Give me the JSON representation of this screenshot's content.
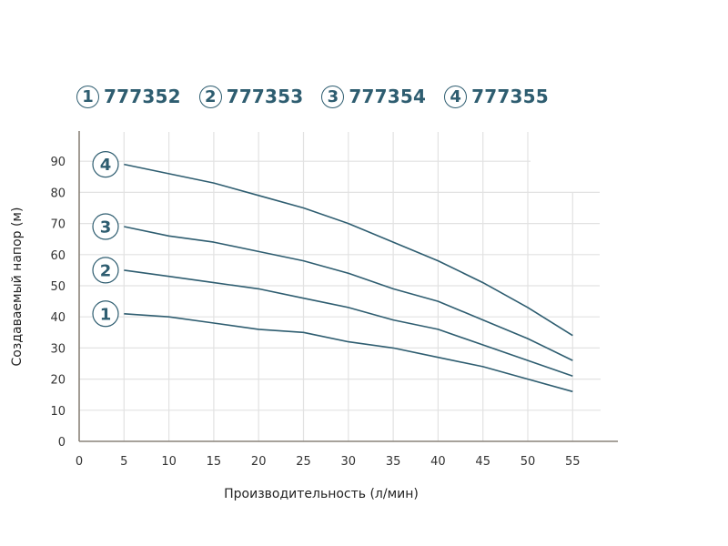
{
  "legend": [
    {
      "badge": "1",
      "label": "777352"
    },
    {
      "badge": "2",
      "label": "777353"
    },
    {
      "badge": "3",
      "label": "777354"
    },
    {
      "badge": "4",
      "label": "777355"
    }
  ],
  "colors": {
    "line": "#2e5d70",
    "grid": "#e2e2e2",
    "axis": "#8a847a"
  },
  "chart_data": {
    "type": "line",
    "title": "",
    "xlabel": "Производительность (л/мин)",
    "ylabel": "Создаваемый напор (м)",
    "xlim": [
      0,
      60
    ],
    "ylim": [
      0,
      100
    ],
    "x_ticks": [
      0,
      5,
      10,
      15,
      20,
      25,
      30,
      35,
      40,
      45,
      50,
      55
    ],
    "y_ticks": [
      0,
      10,
      20,
      30,
      40,
      50,
      60,
      70,
      80,
      90
    ],
    "grid": true,
    "legend_position": "top",
    "x": [
      5,
      10,
      15,
      20,
      25,
      30,
      35,
      40,
      45,
      50,
      55
    ],
    "series": [
      {
        "name": "777352",
        "badge": "1",
        "values": [
          41,
          40,
          38,
          36,
          35,
          32,
          30,
          27,
          24,
          20,
          16
        ]
      },
      {
        "name": "777353",
        "badge": "2",
        "values": [
          55,
          53,
          51,
          49,
          46,
          43,
          39,
          36,
          31,
          26,
          21
        ]
      },
      {
        "name": "777354",
        "badge": "3",
        "values": [
          69,
          66,
          64,
          61,
          58,
          54,
          49,
          45,
          39,
          33,
          26
        ]
      },
      {
        "name": "777355",
        "badge": "4",
        "values": [
          89,
          86,
          83,
          79,
          75,
          70,
          64,
          58,
          51,
          43,
          34
        ]
      }
    ]
  }
}
